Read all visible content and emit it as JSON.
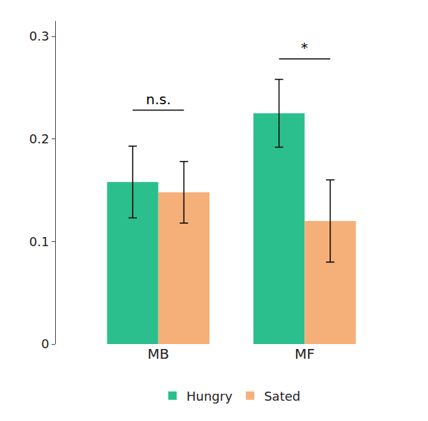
{
  "chart_data": {
    "type": "bar",
    "categories": [
      "MB",
      "MF"
    ],
    "series": [
      {
        "name": "Hungry",
        "color": "#2bbf8e",
        "values": [
          0.158,
          0.225
        ],
        "errors": [
          0.035,
          0.033
        ]
      },
      {
        "name": "Sated",
        "color": "#f5b07a",
        "values": [
          0.148,
          0.12
        ],
        "errors": [
          0.03,
          0.04
        ]
      }
    ],
    "annotations": [
      {
        "text": "n.s.",
        "category": "MB",
        "y": 0.228
      },
      {
        "text": "*",
        "category": "MF",
        "y": 0.278
      }
    ],
    "ylim": [
      0,
      0.315
    ],
    "yticks": [
      0,
      0.1,
      0.2,
      0.3
    ],
    "grid": false,
    "legend": "bottom"
  }
}
